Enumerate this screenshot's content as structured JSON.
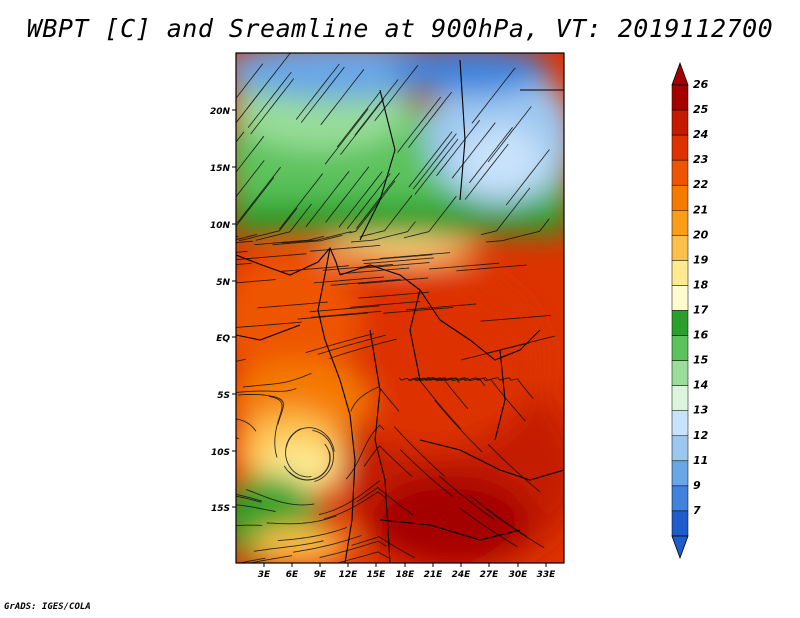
{
  "title": "WBPT [C] and Sreamline at 900hPa, VT: 2019112700",
  "credit": "GrADS: IGES/COLA",
  "map": {
    "latitude_labels": [
      "20N",
      "15N",
      "10N",
      "5N",
      "EQ",
      "5S",
      "10S",
      "15S"
    ],
    "longitude_labels": [
      "3E",
      "6E",
      "9E",
      "12E",
      "15E",
      "18E",
      "21E",
      "24E",
      "27E",
      "30E",
      "33E"
    ]
  },
  "colorbar": {
    "labels": [
      "26",
      "25",
      "24",
      "23",
      "22",
      "21",
      "20",
      "19",
      "18",
      "17",
      "16",
      "15",
      "14",
      "13",
      "12",
      "11",
      "9",
      "7"
    ],
    "colors": [
      "#a50000",
      "#c41a00",
      "#dd3300",
      "#ee5500",
      "#f57a00",
      "#fa9e1a",
      "#fcc04a",
      "#feea90",
      "#fefbcf",
      "#2aa02a",
      "#5cc25c",
      "#99dd99",
      "#dcf4dc",
      "#c8e2fa",
      "#9cc7f0",
      "#6aa6e6",
      "#3f83dc",
      "#1f5ccc"
    ]
  }
}
